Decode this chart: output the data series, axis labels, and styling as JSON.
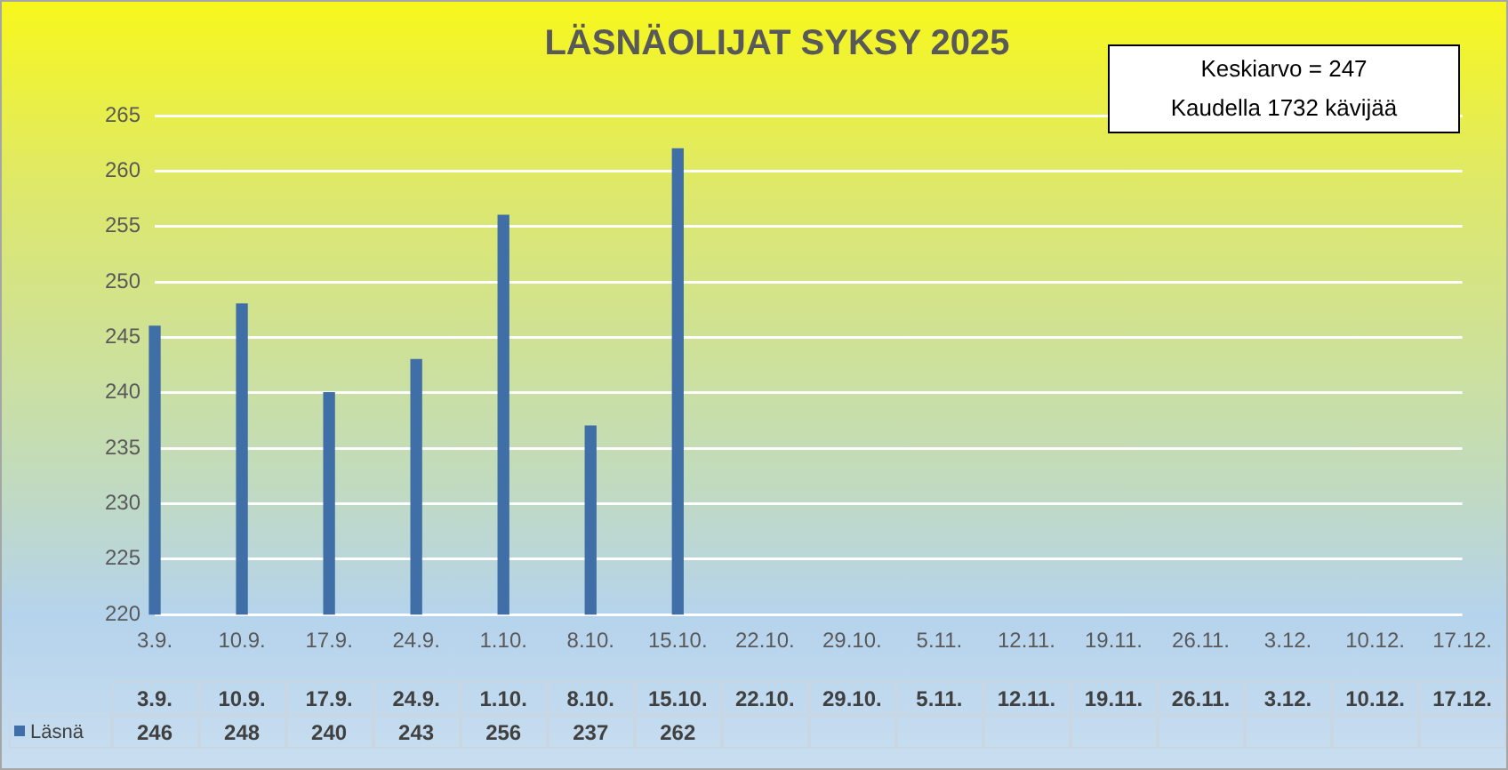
{
  "chart_data": {
    "type": "bar",
    "title": "LÄSNÄOLIJAT SYKSY 2025",
    "categories": [
      "3.9.",
      "10.9.",
      "17.9.",
      "24.9.",
      "1.10.",
      "8.10.",
      "15.10.",
      "22.10.",
      "29.10.",
      "5.11.",
      "12.11.",
      "19.11.",
      "26.11.",
      "3.12.",
      "10.12.",
      "17.12."
    ],
    "series": [
      {
        "name": "Läsnä",
        "color": "#3f6fa6",
        "values": [
          246,
          248,
          240,
          243,
          256,
          237,
          262,
          null,
          null,
          null,
          null,
          null,
          null,
          null,
          null,
          null
        ],
        "value_labels": [
          "246",
          "248",
          "240",
          "243",
          "256",
          "237",
          "262",
          null,
          null,
          null,
          null,
          null,
          null,
          null,
          null,
          null
        ]
      }
    ],
    "ylim": [
      220,
      265
    ],
    "yticks": [
      220,
      225,
      230,
      235,
      240,
      245,
      250,
      255,
      260,
      265
    ],
    "grid": "y",
    "legend": "bottom",
    "annotations": [
      "Keskiarvo = 247",
      "Kaudella 1732 kävijää"
    ]
  }
}
